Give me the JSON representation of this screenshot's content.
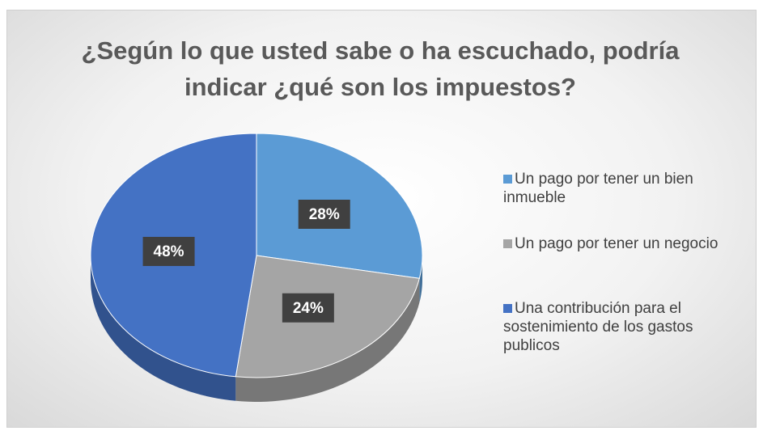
{
  "chart_data": {
    "type": "pie",
    "title": "¿Según lo que usted sabe o ha escuchado, podría indicar ¿qué son los impuestos?",
    "categories": [
      "Un pago por tener un bien inmueble",
      "Un pago por tener un negocio",
      "Una contribución para el sostenimiento de los gastos publicos"
    ],
    "values": [
      28,
      24,
      48
    ],
    "value_labels": [
      "28%",
      "24%",
      "48%"
    ],
    "colors": [
      "#5b9bd5",
      "#a5a5a5",
      "#4472c4"
    ],
    "legend": "right"
  }
}
